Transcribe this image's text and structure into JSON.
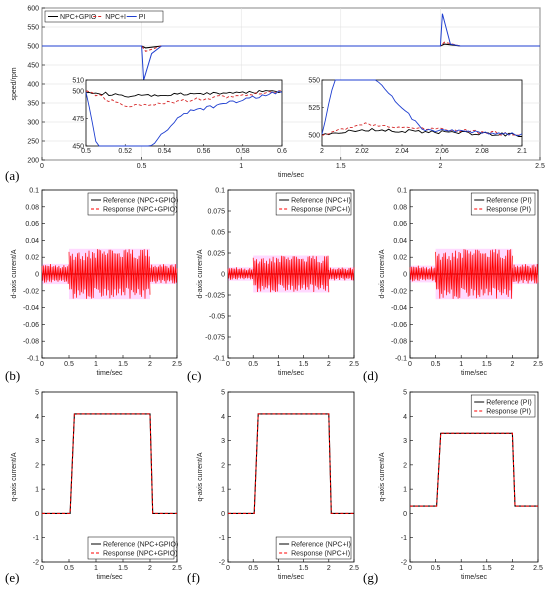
{
  "chart_data": [
    {
      "id": "a",
      "panel_label": "(a)",
      "type": "line",
      "xlabel": "time/sec",
      "ylabel": "speed/rpm",
      "xlim": [
        0,
        2.5
      ],
      "ylim": [
        200,
        600
      ],
      "xticks": [
        "0",
        "0.5",
        "1",
        "1.5",
        "2",
        "2.5"
      ],
      "yticks": [
        "200",
        "250",
        "300",
        "350",
        "400",
        "450",
        "500",
        "550",
        "600"
      ],
      "legend": "top-left",
      "grid": true,
      "series": [
        {
          "name": "NPC+GPIO",
          "color": "#000000",
          "style": "solid",
          "x": [
            0,
            0.5,
            0.52,
            0.6,
            2.0,
            2.02,
            2.1,
            2.5
          ],
          "y": [
            500,
            500,
            495,
            500,
            500,
            505,
            500,
            500
          ]
        },
        {
          "name": "NPC+I",
          "color": "#d62728",
          "style": "dashed",
          "x": [
            0,
            0.5,
            0.52,
            0.6,
            2.0,
            2.02,
            2.1,
            2.5
          ],
          "y": [
            500,
            500,
            486,
            500,
            500,
            510,
            500,
            500
          ]
        },
        {
          "name": "PI",
          "color": "#1f3fd0",
          "style": "solid",
          "x": [
            0,
            0.5,
            0.51,
            0.55,
            0.6,
            2.0,
            2.01,
            2.05,
            2.1,
            2.5
          ],
          "y": [
            500,
            500,
            410,
            480,
            500,
            500,
            585,
            505,
            500,
            500
          ]
        }
      ],
      "insets": [
        {
          "xlim": [
            0.5,
            0.6
          ],
          "ylim": [
            450,
            510
          ],
          "xticks": [
            "0.5",
            "0.52",
            "0.54",
            "0.56",
            "0.58",
            "0.6"
          ],
          "yticks": [
            "450",
            "475",
            "500",
            "510"
          ]
        },
        {
          "xlim": [
            2,
            2.1
          ],
          "ylim": [
            490,
            550
          ],
          "xticks": [
            "2",
            "2.02",
            "2.04",
            "2.06",
            "2.08",
            "2.1"
          ],
          "yticks": [
            "500",
            "525",
            "550"
          ]
        }
      ]
    },
    {
      "id": "b",
      "panel_label": "(b)",
      "type": "line",
      "xlabel": "time/sec",
      "ylabel": "d-axis current/A",
      "xlim": [
        0,
        2.5
      ],
      "ylim": [
        -0.1,
        0.1
      ],
      "xticks": [
        "0",
        "0.5",
        "1",
        "1.5",
        "2",
        "2.5"
      ],
      "yticks": [
        "-0.1",
        "-0.08",
        "-0.06",
        "-0.04",
        "-0.02",
        "0",
        "0.02",
        "0.04",
        "0.06",
        "0.08",
        "0.1"
      ],
      "legend": "top-right",
      "series": [
        {
          "name": "Reference (NPC+GPIO)",
          "color": "#000000",
          "style": "solid",
          "x": [
            0,
            2.5
          ],
          "y": [
            0,
            0
          ]
        },
        {
          "name": "Response (NPC+GPIO)",
          "color": "#ff0000",
          "style": "dashed",
          "band": [
            [
              0,
              0.5,
              0.012
            ],
            [
              0.5,
              2.0,
              0.03
            ],
            [
              2.0,
              2.5,
              0.012
            ]
          ]
        }
      ]
    },
    {
      "id": "c",
      "panel_label": "(c)",
      "type": "line",
      "xlabel": "time/sec",
      "ylabel": "d-axis current/A",
      "xlim": [
        0,
        2.5
      ],
      "ylim": [
        -0.1,
        0.1
      ],
      "xticks": [
        "0",
        "0.5",
        "1",
        "1.5",
        "2",
        "2.5"
      ],
      "yticks": [
        "-0.1",
        "-0.075",
        "-0.05",
        "-0.025",
        "0",
        "0.025",
        "0.05",
        "0.075",
        "0.1"
      ],
      "legend": "top-right",
      "series": [
        {
          "name": "Reference (NPC+I)",
          "color": "#000000",
          "style": "solid",
          "x": [
            0,
            2.5
          ],
          "y": [
            0,
            0
          ]
        },
        {
          "name": "Response (NPC+I)",
          "color": "#ff0000",
          "style": "dashed",
          "band": [
            [
              0,
              0.5,
              0.008
            ],
            [
              0.5,
              2.0,
              0.022
            ],
            [
              2.0,
              2.5,
              0.008
            ]
          ]
        }
      ]
    },
    {
      "id": "d",
      "panel_label": "(d)",
      "type": "line",
      "xlabel": "time/sec",
      "ylabel": "d-axis current/A",
      "xlim": [
        0,
        2.5
      ],
      "ylim": [
        -0.1,
        0.1
      ],
      "xticks": [
        "0",
        "0.5",
        "1",
        "1.5",
        "2",
        "2.5"
      ],
      "yticks": [
        "-0.1",
        "-0.08",
        "-0.06",
        "-0.04",
        "-0.02",
        "0",
        "0.02",
        "0.04",
        "0.06",
        "0.08",
        "0.1"
      ],
      "legend": "top-right",
      "series": [
        {
          "name": "Reference (PI)",
          "color": "#000000",
          "style": "solid",
          "x": [
            0,
            2.5
          ],
          "y": [
            0,
            0
          ]
        },
        {
          "name": "Response (PI)",
          "color": "#ff0000",
          "style": "dashed",
          "band": [
            [
              0,
              0.5,
              0.01
            ],
            [
              0.5,
              2.0,
              0.03
            ],
            [
              2.0,
              2.5,
              0.012
            ]
          ]
        }
      ]
    },
    {
      "id": "e",
      "panel_label": "(e)",
      "type": "line",
      "xlabel": "time/sec",
      "ylabel": "q-axis current/A",
      "xlim": [
        0,
        2.5
      ],
      "ylim": [
        -2,
        5
      ],
      "xticks": [
        "0",
        "0.5",
        "1",
        "1.5",
        "2",
        "2.5"
      ],
      "yticks": [
        "-2",
        "-1",
        "0",
        "1",
        "2",
        "3",
        "4",
        "5"
      ],
      "legend": "bottom-right",
      "series": [
        {
          "name": "Reference (NPC+GPIO)",
          "color": "#000000",
          "style": "solid",
          "x": [
            0,
            0.52,
            0.6,
            2.0,
            2.05,
            2.5
          ],
          "y": [
            0,
            0,
            4.1,
            4.1,
            0,
            0
          ]
        },
        {
          "name": "Response (NPC+GPIO)",
          "color": "#ff0000",
          "style": "dashed",
          "x": [
            0,
            0.52,
            0.6,
            2.0,
            2.05,
            2.5
          ],
          "y": [
            0,
            0,
            4.1,
            4.1,
            0,
            0
          ]
        }
      ]
    },
    {
      "id": "f",
      "panel_label": "(f)",
      "type": "line",
      "xlabel": "time/sec",
      "ylabel": "q-axis current/A",
      "xlim": [
        0,
        2.5
      ],
      "ylim": [
        -2,
        5
      ],
      "xticks": [
        "0",
        "0.5",
        "1",
        "1.5",
        "2",
        "2.5"
      ],
      "yticks": [
        "-2",
        "-1",
        "0",
        "1",
        "2",
        "3",
        "4",
        "5"
      ],
      "legend": "bottom-right",
      "series": [
        {
          "name": "Reference (NPC+I)",
          "color": "#000000",
          "style": "solid",
          "x": [
            0,
            0.52,
            0.6,
            2.0,
            2.05,
            2.5
          ],
          "y": [
            0,
            0,
            4.1,
            4.1,
            0,
            0
          ]
        },
        {
          "name": "Response (NPC+I)",
          "color": "#ff0000",
          "style": "dashed",
          "x": [
            0,
            0.52,
            0.6,
            2.0,
            2.05,
            2.5
          ],
          "y": [
            0,
            0,
            4.1,
            4.1,
            0,
            0
          ]
        }
      ]
    },
    {
      "id": "g",
      "panel_label": "(g)",
      "type": "line",
      "xlabel": "time/sec",
      "ylabel": "q-axis current/A",
      "xlim": [
        0,
        2.5
      ],
      "ylim": [
        -2,
        5
      ],
      "xticks": [
        "0",
        "0.5",
        "1",
        "1.5",
        "2",
        "2.5"
      ],
      "yticks": [
        "-2",
        "-1",
        "0",
        "1",
        "2",
        "3",
        "4",
        "5"
      ],
      "legend": "top-right",
      "series": [
        {
          "name": "Reference (PI)",
          "color": "#000000",
          "style": "solid",
          "x": [
            0,
            0.52,
            0.6,
            2.0,
            2.05,
            2.5
          ],
          "y": [
            0.3,
            0.3,
            3.3,
            3.3,
            0.3,
            0.3
          ]
        },
        {
          "name": "Response (PI)",
          "color": "#ff0000",
          "style": "dashed",
          "x": [
            0,
            0.52,
            0.6,
            2.0,
            2.05,
            2.5
          ],
          "y": [
            0.3,
            0.3,
            3.3,
            3.3,
            0.3,
            0.3
          ]
        }
      ]
    }
  ]
}
